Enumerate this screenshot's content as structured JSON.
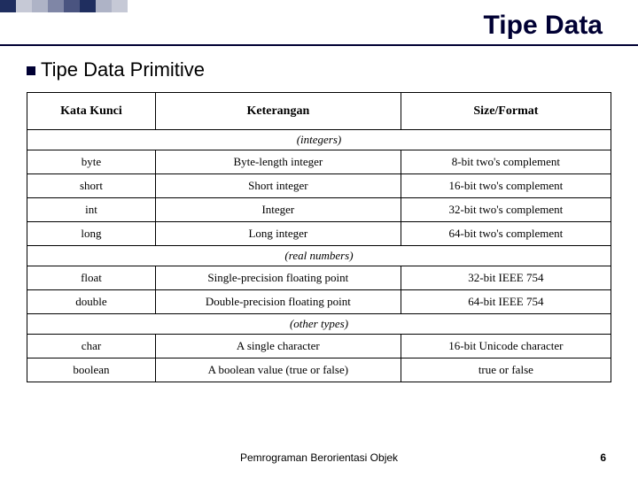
{
  "deco_colors": [
    "#1f2e5f",
    "#c6c9d6",
    "#aeb3c6",
    "#7f86a6",
    "#4a5480",
    "#1f2e5f",
    "#aeb3c6",
    "#c6c9d6"
  ],
  "title": "Tipe Data",
  "subtitle": "Tipe Data Primitive",
  "headers": {
    "c1": "Kata Kunci",
    "c2": "Keterangan",
    "c3": "Size/Format"
  },
  "groups": [
    {
      "label": "(integers)",
      "rows": [
        {
          "c1": "byte",
          "c2": "Byte-length integer",
          "c3": "8-bit two's complement"
        },
        {
          "c1": "short",
          "c2": "Short integer",
          "c3": "16-bit two's complement"
        },
        {
          "c1": "int",
          "c2": "Integer",
          "c3": "32-bit two's complement"
        },
        {
          "c1": "long",
          "c2": "Long integer",
          "c3": "64-bit two's complement"
        }
      ]
    },
    {
      "label": "(real numbers)",
      "rows": [
        {
          "c1": "float",
          "c2": "Single-precision floating point",
          "c3": "32-bit IEEE 754"
        },
        {
          "c1": "double",
          "c2": "Double-precision floating point",
          "c3": "64-bit IEEE 754"
        }
      ]
    },
    {
      "label": "(other types)",
      "rows": [
        {
          "c1": "char",
          "c2": "A single character",
          "c3": "16-bit Unicode character"
        },
        {
          "c1": "boolean",
          "c2": "A boolean value (true or false)",
          "c3": "true or false"
        }
      ]
    }
  ],
  "footer": "Pemrograman Berorientasi Objek",
  "pagenum": "6"
}
